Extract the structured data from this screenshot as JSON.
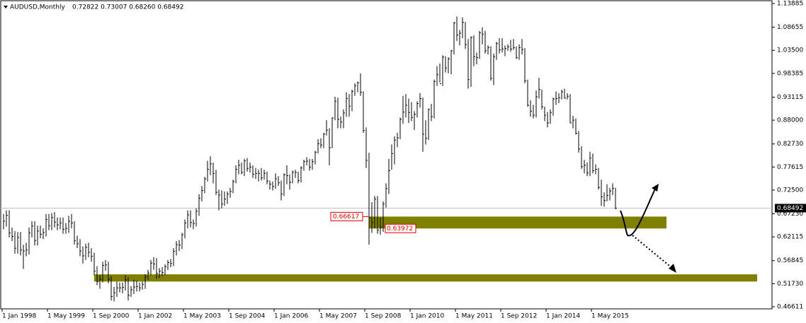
{
  "chart_data": {
    "type": "ohlc",
    "title": "AUDUSD,Monthly",
    "ohlc_text": "0.72822 0.73007 0.68260 0.68492",
    "color": "#000000",
    "high": [
      0.672,
      0.68,
      0.68,
      0.642,
      0.634,
      0.632,
      0.632,
      0.604,
      0.608,
      0.642,
      0.656,
      0.656,
      0.646,
      0.646,
      0.64,
      0.672,
      0.672,
      0.674,
      0.676,
      0.664,
      0.664,
      0.664,
      0.652,
      0.668,
      0.672,
      0.656,
      0.624,
      0.616,
      0.6,
      0.606,
      0.608,
      0.596,
      0.586,
      0.556,
      0.536,
      0.566,
      0.57,
      0.566,
      0.534,
      0.51,
      0.522,
      0.52,
      0.52,
      0.536,
      0.532,
      0.512,
      0.526,
      0.524,
      0.52,
      0.522,
      0.538,
      0.548,
      0.57,
      0.576,
      0.574,
      0.552,
      0.554,
      0.56,
      0.57,
      0.572,
      0.596,
      0.612,
      0.614,
      0.63,
      0.66,
      0.68,
      0.68,
      0.66,
      0.684,
      0.716,
      0.734,
      0.754,
      0.79,
      0.8,
      0.786,
      0.77,
      0.726,
      0.724,
      0.722,
      0.722,
      0.73,
      0.748,
      0.78,
      0.792,
      0.786,
      0.794,
      0.796,
      0.786,
      0.78,
      0.774,
      0.77,
      0.774,
      0.77,
      0.766,
      0.746,
      0.744,
      0.762,
      0.756,
      0.746,
      0.762,
      0.78,
      0.76,
      0.768,
      0.77,
      0.766,
      0.778,
      0.792,
      0.798,
      0.794,
      0.794,
      0.812,
      0.838,
      0.84,
      0.852,
      0.88,
      0.862,
      0.886,
      0.932,
      0.93,
      0.888,
      0.904,
      0.942,
      0.938,
      0.948,
      0.962,
      0.966,
      0.984,
      0.944,
      0.864,
      0.808,
      0.698,
      0.712,
      0.712,
      0.664,
      0.7,
      0.74,
      0.794,
      0.826,
      0.844,
      0.852,
      0.886,
      0.934,
      0.938,
      0.928,
      0.92,
      0.9,
      0.922,
      0.94,
      0.93,
      0.88,
      0.906,
      0.916,
      0.97,
      1.0,
      1.006,
      1.024,
      1.022,
      1.02,
      1.036,
      1.098,
      1.11,
      1.08,
      1.108,
      1.098,
      1.06,
      1.066,
      1.068,
      1.03,
      1.078,
      1.086,
      1.078,
      1.046,
      1.044,
      1.028,
      1.054,
      1.062,
      1.062,
      1.046,
      1.048,
      1.058,
      1.06,
      1.044,
      1.048,
      1.06,
      1.04,
      0.97,
      0.924,
      0.914,
      0.946,
      0.974,
      0.948,
      0.91,
      0.898,
      0.904,
      0.93,
      0.944,
      0.94,
      0.948,
      0.95,
      0.94,
      0.938,
      0.89,
      0.884,
      0.856,
      0.822,
      0.792,
      0.786,
      0.81,
      0.806,
      0.782,
      0.774,
      0.748,
      0.72,
      0.738,
      0.73,
      0.74,
      0.73007
    ],
    "low": [
      0.638,
      0.644,
      0.62,
      0.612,
      0.584,
      0.584,
      0.58,
      0.55,
      0.578,
      0.582,
      0.62,
      0.602,
      0.602,
      0.618,
      0.616,
      0.622,
      0.636,
      0.636,
      0.642,
      0.636,
      0.638,
      0.628,
      0.628,
      0.63,
      0.64,
      0.604,
      0.596,
      0.578,
      0.562,
      0.57,
      0.576,
      0.566,
      0.536,
      0.514,
      0.506,
      0.52,
      0.546,
      0.518,
      0.48,
      0.478,
      0.488,
      0.498,
      0.496,
      0.502,
      0.48,
      0.488,
      0.494,
      0.5,
      0.5,
      0.504,
      0.506,
      0.526,
      0.536,
      0.548,
      0.528,
      0.53,
      0.534,
      0.536,
      0.548,
      0.554,
      0.556,
      0.58,
      0.59,
      0.594,
      0.618,
      0.64,
      0.642,
      0.638,
      0.644,
      0.668,
      0.7,
      0.718,
      0.744,
      0.758,
      0.74,
      0.714,
      0.68,
      0.684,
      0.69,
      0.694,
      0.708,
      0.718,
      0.74,
      0.76,
      0.76,
      0.756,
      0.766,
      0.764,
      0.752,
      0.75,
      0.744,
      0.746,
      0.748,
      0.738,
      0.726,
      0.724,
      0.728,
      0.734,
      0.702,
      0.712,
      0.738,
      0.726,
      0.74,
      0.752,
      0.74,
      0.742,
      0.768,
      0.78,
      0.768,
      0.77,
      0.782,
      0.806,
      0.818,
      0.818,
      0.846,
      0.78,
      0.818,
      0.88,
      0.862,
      0.862,
      0.862,
      0.888,
      0.888,
      0.9,
      0.934,
      0.942,
      0.934,
      0.852,
      0.774,
      0.604,
      0.63,
      0.64,
      0.628,
      0.626,
      0.632,
      0.686,
      0.716,
      0.77,
      0.782,
      0.82,
      0.838,
      0.872,
      0.886,
      0.874,
      0.878,
      0.858,
      0.886,
      0.908,
      0.81,
      0.826,
      0.836,
      0.878,
      0.884,
      0.956,
      0.964,
      0.956,
      0.986,
      0.984,
      0.982,
      1.026,
      1.056,
      1.046,
      1.062,
      1.038,
      0.95,
      0.954,
      1.0,
      1.004,
      1.016,
      1.048,
      1.028,
      1.026,
      0.968,
      0.958,
      1.014,
      1.028,
      1.03,
      1.022,
      1.034,
      1.032,
      1.036,
      1.016,
      1.014,
      1.026,
      0.962,
      0.91,
      0.888,
      0.884,
      0.886,
      0.928,
      0.904,
      0.878,
      0.864,
      0.872,
      0.89,
      0.914,
      0.918,
      0.926,
      0.928,
      0.926,
      0.874,
      0.862,
      0.848,
      0.808,
      0.772,
      0.762,
      0.756,
      0.756,
      0.762,
      0.76,
      0.726,
      0.69,
      0.688,
      0.7,
      0.702,
      0.714,
      0.6826
    ],
    "close": [
      0.656,
      0.669,
      0.63,
      0.622,
      0.596,
      0.62,
      0.592,
      0.59,
      0.592,
      0.63,
      0.645,
      0.613,
      0.634,
      0.627,
      0.631,
      0.66,
      0.646,
      0.664,
      0.654,
      0.648,
      0.652,
      0.638,
      0.64,
      0.656,
      0.652,
      0.613,
      0.606,
      0.59,
      0.579,
      0.598,
      0.587,
      0.578,
      0.545,
      0.522,
      0.527,
      0.558,
      0.559,
      0.527,
      0.489,
      0.497,
      0.508,
      0.508,
      0.509,
      0.526,
      0.492,
      0.504,
      0.51,
      0.511,
      0.508,
      0.516,
      0.532,
      0.541,
      0.563,
      0.561,
      0.54,
      0.545,
      0.542,
      0.555,
      0.564,
      0.562,
      0.589,
      0.604,
      0.603,
      0.626,
      0.652,
      0.67,
      0.653,
      0.651,
      0.678,
      0.707,
      0.724,
      0.75,
      0.771,
      0.783,
      0.762,
      0.72,
      0.714,
      0.694,
      0.705,
      0.716,
      0.722,
      0.744,
      0.771,
      0.78,
      0.764,
      0.79,
      0.773,
      0.776,
      0.76,
      0.762,
      0.762,
      0.752,
      0.762,
      0.745,
      0.738,
      0.733,
      0.75,
      0.741,
      0.716,
      0.759,
      0.757,
      0.742,
      0.765,
      0.764,
      0.746,
      0.774,
      0.788,
      0.789,
      0.776,
      0.788,
      0.809,
      0.828,
      0.825,
      0.849,
      0.858,
      0.819,
      0.885,
      0.922,
      0.882,
      0.876,
      0.896,
      0.928,
      0.911,
      0.944,
      0.956,
      0.963,
      0.942,
      0.857,
      0.791,
      0.664,
      0.653,
      0.705,
      0.636,
      0.643,
      0.694,
      0.729,
      0.768,
      0.806,
      0.836,
      0.841,
      0.882,
      0.898,
      0.913,
      0.897,
      0.886,
      0.893,
      0.917,
      0.928,
      0.849,
      0.84,
      0.904,
      0.888,
      0.966,
      0.981,
      0.961,
      1.02,
      0.996,
      1.016,
      1.034,
      1.096,
      1.069,
      1.073,
      1.097,
      1.048,
      0.97,
      1.064,
      1.021,
      1.019,
      1.074,
      1.071,
      1.034,
      1.041,
      0.973,
      1.021,
      1.05,
      1.036,
      1.038,
      1.039,
      1.043,
      1.038,
      1.041,
      1.019,
      1.041,
      1.037,
      0.967,
      0.913,
      0.9,
      0.891,
      0.932,
      0.948,
      0.91,
      0.891,
      0.874,
      0.897,
      0.927,
      0.928,
      0.93,
      0.943,
      0.929,
      0.933,
      0.874,
      0.88,
      0.851,
      0.816,
      0.777,
      0.78,
      0.763,
      0.796,
      0.768,
      0.771,
      0.731,
      0.71,
      0.702,
      0.713,
      0.723,
      0.729,
      0.68492
    ],
    "xlim": [
      0,
      271
    ],
    "xticks": [
      {
        "value": 0,
        "label": "1 Jan 1998"
      },
      {
        "value": 16,
        "label": "1 May 1999"
      },
      {
        "value": 32,
        "label": "1 Sep 2000"
      },
      {
        "value": 48,
        "label": "1 Jan 2002"
      },
      {
        "value": 64,
        "label": "1 May 2003"
      },
      {
        "value": 80,
        "label": "1 Sep 2004"
      },
      {
        "value": 96,
        "label": "1 Jan 2006"
      },
      {
        "value": 112,
        "label": "1 May 2007"
      },
      {
        "value": 128,
        "label": "1 Sep 2008"
      },
      {
        "value": 144,
        "label": "1 Jan 2010"
      },
      {
        "value": 160,
        "label": "1 May 2011"
      },
      {
        "value": 176,
        "label": "1 Sep 2012"
      },
      {
        "value": 192,
        "label": "1 Jan 2014"
      },
      {
        "value": 208,
        "label": "1 May 2015"
      }
    ],
    "ylim": [
      0.46611,
      1.13885
    ],
    "yticks": [
      1.13885,
      1.08655,
      {
        "value": 1.035,
        "label": "1.03500"
      },
      0.98385,
      0.93115,
      {
        "value": 0.88,
        "label": "0.88000"
      },
      {
        "value": 0.8273,
        "label": "0.82730"
      },
      0.77615,
      {
        "value": 0.725,
        "label": "0.72500"
      },
      {
        "value": 0.6723,
        "label": "0.67230"
      },
      0.62115,
      0.56845,
      {
        "value": 0.5173,
        "label": "0.51730"
      },
      0.46611
    ],
    "zones": [
      {
        "from": 0.63972,
        "to": 0.66617,
        "x": [
          129,
          234
        ],
        "color": "#808000"
      },
      {
        "from": 0.522,
        "to": 0.538,
        "x": [
          32,
          266
        ],
        "color": "#808000"
      }
    ]
  }
}
